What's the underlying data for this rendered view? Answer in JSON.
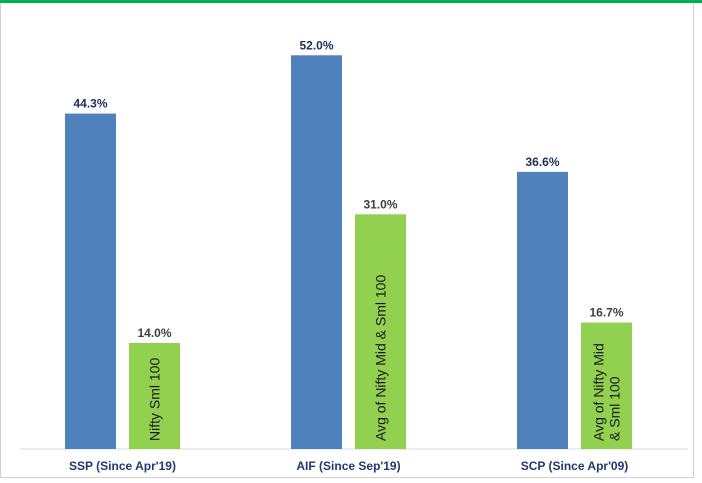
{
  "chart_data": {
    "type": "bar",
    "categories": [
      "SSP (Since  Apr'19)",
      "AIF (Since  Sep'19)",
      "SCP (Since  Apr'09)"
    ],
    "series": [
      {
        "values": [
          44.3,
          52.0,
          36.6
        ],
        "value_labels": [
          "44.3%",
          "52.0%",
          "36.6%"
        ],
        "color": "#4f81bd"
      },
      {
        "values": [
          14.0,
          31.0,
          16.7
        ],
        "value_labels": [
          "14.0%",
          "31.0%",
          "16.7%"
        ],
        "bar_labels": [
          [
            "Nifty Sml 100"
          ],
          [
            "Avg of Nifty Mid & Sml 100"
          ],
          [
            "Avg of Nifty Mid",
            "& Sml 100"
          ]
        ],
        "color": "#92d050"
      }
    ],
    "ylim": [
      0,
      56
    ],
    "grid": false,
    "legend": "none",
    "colors": {
      "axis": "#d9d9d9",
      "frame_top": "#00b050"
    }
  }
}
